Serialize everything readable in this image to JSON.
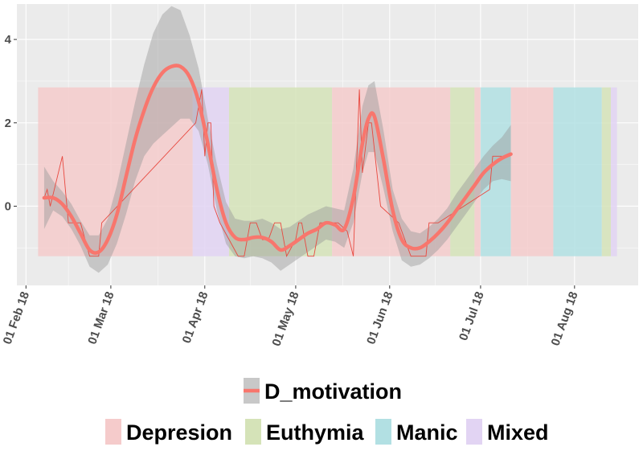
{
  "chart_data": {
    "type": "line",
    "title": "",
    "xlabel": "",
    "ylabel": "",
    "x_axis": {
      "type": "date",
      "range": [
        "2018-01-29",
        "2018-08-22"
      ],
      "ticks": [
        {
          "date": "2018-02-01",
          "label": "01 Feb 18"
        },
        {
          "date": "2018-03-01",
          "label": "01 Mar 18"
        },
        {
          "date": "2018-04-01",
          "label": "01 Apr 18"
        },
        {
          "date": "2018-05-01",
          "label": "01 May 18"
        },
        {
          "date": "2018-06-01",
          "label": "01 Jun 18"
        },
        {
          "date": "2018-07-01",
          "label": "01 Jul 18"
        },
        {
          "date": "2018-08-01",
          "label": "01 Aug 18"
        }
      ]
    },
    "y_axis": {
      "range": [
        -1.9,
        4.85
      ],
      "ticks": [
        {
          "value": 0,
          "label": "0"
        },
        {
          "value": 2,
          "label": "2"
        },
        {
          "value": 4,
          "label": "4"
        }
      ]
    },
    "grid": true,
    "legend_position": "bottom",
    "episodes": {
      "y_range": [
        -1.2,
        2.85
      ],
      "items": [
        {
          "start": "2018-02-05",
          "end": "2018-03-28",
          "state": "Depresion"
        },
        {
          "start": "2018-03-28",
          "end": "2018-04-09",
          "state": "Mixed"
        },
        {
          "start": "2018-04-09",
          "end": "2018-05-13",
          "state": "Euthymia"
        },
        {
          "start": "2018-05-13",
          "end": "2018-06-21",
          "state": "Depresion"
        },
        {
          "start": "2018-06-21",
          "end": "2018-06-29",
          "state": "Euthymia"
        },
        {
          "start": "2018-06-29",
          "end": "2018-07-01",
          "state": "Depresion"
        },
        {
          "start": "2018-07-01",
          "end": "2018-07-11",
          "state": "Manic"
        },
        {
          "start": "2018-07-11",
          "end": "2018-07-25",
          "state": "Depresion"
        },
        {
          "start": "2018-07-25",
          "end": "2018-08-10",
          "state": "Manic"
        },
        {
          "start": "2018-08-10",
          "end": "2018-08-13",
          "state": "Euthymia"
        },
        {
          "start": "2018-08-13",
          "end": "2018-08-15",
          "state": "Mixed"
        }
      ]
    },
    "series": [
      {
        "name": "D_motivation",
        "color": "#f8766d",
        "raw": [
          {
            "x": "2018-02-07",
            "y": 0.2
          },
          {
            "x": "2018-02-08",
            "y": 0.4
          },
          {
            "x": "2018-02-09",
            "y": 0.0
          },
          {
            "x": "2018-02-13",
            "y": 1.2
          },
          {
            "x": "2018-02-15",
            "y": -0.4
          },
          {
            "x": "2018-02-19",
            "y": -0.4
          },
          {
            "x": "2018-02-22",
            "y": -1.2
          },
          {
            "x": "2018-02-25",
            "y": -1.2
          },
          {
            "x": "2018-02-26",
            "y": -0.4
          },
          {
            "x": "2018-03-29",
            "y": 2.0
          },
          {
            "x": "2018-03-31",
            "y": 2.8
          },
          {
            "x": "2018-04-01",
            "y": 1.2
          },
          {
            "x": "2018-04-02",
            "y": 2.0
          },
          {
            "x": "2018-04-03",
            "y": 2.0
          },
          {
            "x": "2018-04-04",
            "y": 0.0
          },
          {
            "x": "2018-04-06",
            "y": -0.4
          },
          {
            "x": "2018-04-09",
            "y": -0.8
          },
          {
            "x": "2018-04-12",
            "y": -1.2
          },
          {
            "x": "2018-04-14",
            "y": -1.2
          },
          {
            "x": "2018-04-16",
            "y": -0.4
          },
          {
            "x": "2018-04-18",
            "y": -0.4
          },
          {
            "x": "2018-04-20",
            "y": -0.8
          },
          {
            "x": "2018-04-22",
            "y": -0.8
          },
          {
            "x": "2018-04-24",
            "y": -0.4
          },
          {
            "x": "2018-04-26",
            "y": -0.4
          },
          {
            "x": "2018-04-28",
            "y": -1.2
          },
          {
            "x": "2018-05-01",
            "y": -0.8
          },
          {
            "x": "2018-05-02",
            "y": -0.4
          },
          {
            "x": "2018-05-03",
            "y": -0.4
          },
          {
            "x": "2018-05-05",
            "y": -1.2
          },
          {
            "x": "2018-05-07",
            "y": -1.2
          },
          {
            "x": "2018-05-09",
            "y": -0.4
          },
          {
            "x": "2018-05-11",
            "y": -0.4
          },
          {
            "x": "2018-05-15",
            "y": -0.4
          },
          {
            "x": "2018-05-18",
            "y": -0.6
          },
          {
            "x": "2018-05-20",
            "y": -1.2
          },
          {
            "x": "2018-05-22",
            "y": 2.8
          },
          {
            "x": "2018-05-23",
            "y": 0.8
          },
          {
            "x": "2018-05-25",
            "y": 2.0
          },
          {
            "x": "2018-05-26",
            "y": 2.0
          },
          {
            "x": "2018-05-29",
            "y": 0.0
          },
          {
            "x": "2018-06-04",
            "y": -0.4
          },
          {
            "x": "2018-06-08",
            "y": -1.2
          },
          {
            "x": "2018-06-13",
            "y": -1.2
          },
          {
            "x": "2018-06-14",
            "y": -0.4
          },
          {
            "x": "2018-06-17",
            "y": -0.4
          },
          {
            "x": "2018-07-04",
            "y": 0.4
          },
          {
            "x": "2018-07-05",
            "y": 1.2
          },
          {
            "x": "2018-07-08",
            "y": 1.2
          }
        ],
        "smooth": [
          {
            "x": "2018-02-07",
            "y": 0.2,
            "lo": -0.55,
            "hi": 0.95
          },
          {
            "x": "2018-02-10",
            "y": 0.2,
            "lo": -0.1,
            "hi": 0.6
          },
          {
            "x": "2018-02-13",
            "y": 0.05,
            "lo": -0.25,
            "hi": 0.35
          },
          {
            "x": "2018-02-16",
            "y": -0.25,
            "lo": -0.55,
            "hi": 0.05
          },
          {
            "x": "2018-02-19",
            "y": -0.65,
            "lo": -0.95,
            "hi": -0.35
          },
          {
            "x": "2018-02-22",
            "y": -1.05,
            "lo": -1.45,
            "hi": -0.7
          },
          {
            "x": "2018-02-25",
            "y": -1.1,
            "lo": -1.6,
            "hi": -0.7
          },
          {
            "x": "2018-02-28",
            "y": -0.8,
            "lo": -1.4,
            "hi": -0.3
          },
          {
            "x": "2018-03-03",
            "y": -0.2,
            "lo": -0.9,
            "hi": 0.5
          },
          {
            "x": "2018-03-06",
            "y": 0.7,
            "lo": -0.2,
            "hi": 1.5
          },
          {
            "x": "2018-03-09",
            "y": 1.6,
            "lo": 0.6,
            "hi": 2.5
          },
          {
            "x": "2018-03-12",
            "y": 2.3,
            "lo": 1.2,
            "hi": 3.4
          },
          {
            "x": "2018-03-15",
            "y": 2.85,
            "lo": 1.5,
            "hi": 4.15
          },
          {
            "x": "2018-03-18",
            "y": 3.2,
            "lo": 1.7,
            "hi": 4.6
          },
          {
            "x": "2018-03-21",
            "y": 3.35,
            "lo": 1.9,
            "hi": 4.8
          },
          {
            "x": "2018-03-24",
            "y": 3.35,
            "lo": 2.1,
            "hi": 4.7
          },
          {
            "x": "2018-03-27",
            "y": 3.1,
            "lo": 2.1,
            "hi": 4.1
          },
          {
            "x": "2018-03-30",
            "y": 2.5,
            "lo": 1.8,
            "hi": 3.3
          },
          {
            "x": "2018-04-02",
            "y": 1.5,
            "lo": 1.0,
            "hi": 2.1
          },
          {
            "x": "2018-04-05",
            "y": 0.4,
            "lo": -0.1,
            "hi": 1.0
          },
          {
            "x": "2018-04-08",
            "y": -0.4,
            "lo": -0.9,
            "hi": 0.1
          },
          {
            "x": "2018-04-11",
            "y": -0.75,
            "lo": -1.2,
            "hi": -0.3
          },
          {
            "x": "2018-04-14",
            "y": -0.8,
            "lo": -1.25,
            "hi": -0.35
          },
          {
            "x": "2018-04-17",
            "y": -0.75,
            "lo": -1.2,
            "hi": -0.35
          },
          {
            "x": "2018-04-20",
            "y": -0.75,
            "lo": -1.25,
            "hi": -0.3
          },
          {
            "x": "2018-04-23",
            "y": -0.85,
            "lo": -1.35,
            "hi": -0.4
          },
          {
            "x": "2018-04-26",
            "y": -1.05,
            "lo": -1.55,
            "hi": -0.55
          },
          {
            "x": "2018-04-29",
            "y": -0.95,
            "lo": -1.4,
            "hi": -0.5
          },
          {
            "x": "2018-05-02",
            "y": -0.8,
            "lo": -1.25,
            "hi": -0.35
          },
          {
            "x": "2018-05-05",
            "y": -0.65,
            "lo": -1.1,
            "hi": -0.2
          },
          {
            "x": "2018-05-08",
            "y": -0.55,
            "lo": -0.95,
            "hi": -0.1
          },
          {
            "x": "2018-05-11",
            "y": -0.4,
            "lo": -0.8,
            "hi": 0.0
          },
          {
            "x": "2018-05-14",
            "y": -0.45,
            "lo": -0.85,
            "hi": -0.05
          },
          {
            "x": "2018-05-17",
            "y": -0.55,
            "lo": -1.0,
            "hi": -0.1
          },
          {
            "x": "2018-05-20",
            "y": 0.2,
            "lo": -0.4,
            "hi": 0.9
          },
          {
            "x": "2018-05-23",
            "y": 1.5,
            "lo": 0.8,
            "hi": 2.4
          },
          {
            "x": "2018-05-25",
            "y": 2.1,
            "lo": 1.3,
            "hi": 2.9
          },
          {
            "x": "2018-05-27",
            "y": 2.15,
            "lo": 1.3,
            "hi": 3.0
          },
          {
            "x": "2018-05-30",
            "y": 1.1,
            "lo": 0.4,
            "hi": 1.8
          },
          {
            "x": "2018-06-02",
            "y": -0.1,
            "lo": -0.6,
            "hi": 0.4
          },
          {
            "x": "2018-06-05",
            "y": -0.8,
            "lo": -1.3,
            "hi": -0.3
          },
          {
            "x": "2018-06-08",
            "y": -1.0,
            "lo": -1.45,
            "hi": -0.6
          },
          {
            "x": "2018-06-11",
            "y": -1.0,
            "lo": -1.4,
            "hi": -0.65
          },
          {
            "x": "2018-06-14",
            "y": -0.85,
            "lo": -1.25,
            "hi": -0.5
          },
          {
            "x": "2018-06-17",
            "y": -0.65,
            "lo": -1.05,
            "hi": -0.3
          },
          {
            "x": "2018-06-20",
            "y": -0.4,
            "lo": -0.8,
            "hi": -0.05
          },
          {
            "x": "2018-06-23",
            "y": -0.1,
            "lo": -0.5,
            "hi": 0.3
          },
          {
            "x": "2018-06-26",
            "y": 0.2,
            "lo": -0.2,
            "hi": 0.6
          },
          {
            "x": "2018-06-29",
            "y": 0.5,
            "lo": 0.1,
            "hi": 0.9
          },
          {
            "x": "2018-07-02",
            "y": 0.8,
            "lo": 0.4,
            "hi": 1.2
          },
          {
            "x": "2018-07-05",
            "y": 1.0,
            "lo": 0.6,
            "hi": 1.45
          },
          {
            "x": "2018-07-08",
            "y": 1.15,
            "lo": 0.65,
            "hi": 1.65
          },
          {
            "x": "2018-07-11",
            "y": 1.25,
            "lo": 0.6,
            "hi": 1.95
          }
        ]
      }
    ]
  },
  "legend": {
    "series": [
      {
        "label": "D_motivation",
        "line_color": "#f8766d",
        "band_color": "#c8c8c8"
      }
    ],
    "states": [
      {
        "label": "Depresion",
        "color": "#f5cbcb"
      },
      {
        "label": "Euthymia",
        "color": "#d5e3b8"
      },
      {
        "label": "Manic",
        "color": "#b2e0e3"
      },
      {
        "label": "Mixed",
        "color": "#e2d4f3"
      }
    ]
  },
  "colors": {
    "panel_background": "#ebebeb",
    "gridline": "#ffffff",
    "axis_text": "#4d4d4d",
    "smooth_line": "#f8766d",
    "raw_line": "#e8483f",
    "confidence_band": "#999999"
  }
}
